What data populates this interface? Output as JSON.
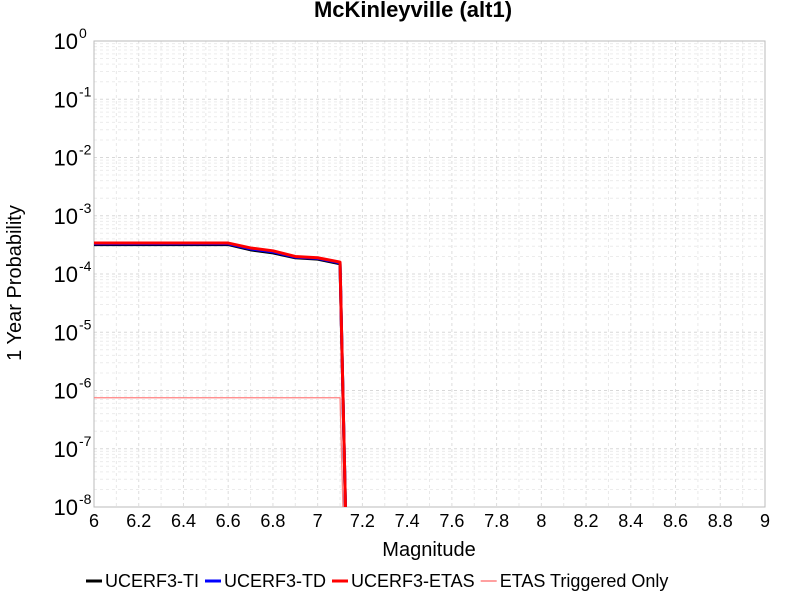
{
  "chart_data": {
    "type": "line",
    "title": "McKinleyville (alt1)",
    "xlabel": "Magnitude",
    "ylabel": "1 Year Probability",
    "xlim": [
      6,
      9
    ],
    "ylim": [
      1e-08,
      1
    ],
    "yscale": "log",
    "grid": true,
    "legend_position": "bottom",
    "x_ticks": [
      6,
      6.2,
      6.4,
      6.6,
      6.8,
      7,
      7.2,
      7.4,
      7.6,
      7.8,
      8,
      8.2,
      8.4,
      8.6,
      8.8,
      9
    ],
    "x_tick_labels": [
      "6",
      "6.2",
      "6.4",
      "6.6",
      "6.8",
      "7",
      "7.2",
      "7.4",
      "7.6",
      "7.8",
      "8",
      "8.2",
      "8.4",
      "8.6",
      "8.8",
      "9"
    ],
    "y_ticks": [
      {
        "value": 1,
        "base": "10",
        "exp": "0"
      },
      {
        "value": 0.1,
        "base": "10",
        "exp": "-1"
      },
      {
        "value": 0.01,
        "base": "10",
        "exp": "-2"
      },
      {
        "value": 0.001,
        "base": "10",
        "exp": "-3"
      },
      {
        "value": 0.0001,
        "base": "10",
        "exp": "-4"
      },
      {
        "value": 1e-05,
        "base": "10",
        "exp": "-5"
      },
      {
        "value": 1e-06,
        "base": "10",
        "exp": "-6"
      },
      {
        "value": 1e-07,
        "base": "10",
        "exp": "-7"
      },
      {
        "value": 1e-08,
        "base": "10",
        "exp": "-8"
      }
    ],
    "series": [
      {
        "name": "UCERF3-TI",
        "color": "#000000",
        "x": [
          6.0,
          6.1,
          6.2,
          6.3,
          6.4,
          6.5,
          6.6,
          6.7,
          6.8,
          6.9,
          7.0,
          7.1,
          7.13
        ],
        "y": [
          0.00032,
          0.00032,
          0.00032,
          0.00032,
          0.00032,
          0.00032,
          0.00032,
          0.00026,
          0.00023,
          0.00019,
          0.00018,
          0.00015,
          1e-09
        ]
      },
      {
        "name": "UCERF3-TD",
        "color": "#0000ff",
        "x": [
          6.0,
          6.1,
          6.2,
          6.3,
          6.4,
          6.5,
          6.6,
          6.7,
          6.8,
          6.9,
          7.0,
          7.1,
          7.13
        ],
        "y": [
          0.00033,
          0.00033,
          0.00033,
          0.00033,
          0.00033,
          0.00033,
          0.00033,
          0.00027,
          0.00024,
          0.000195,
          0.000185,
          0.000155,
          1e-09
        ]
      },
      {
        "name": "UCERF3-ETAS",
        "color": "#ff0000",
        "x": [
          6.0,
          6.1,
          6.2,
          6.3,
          6.4,
          6.5,
          6.6,
          6.7,
          6.8,
          6.9,
          7.0,
          7.1,
          7.13
        ],
        "y": [
          0.00034,
          0.00034,
          0.00034,
          0.00034,
          0.00034,
          0.00034,
          0.00034,
          0.00028,
          0.00025,
          0.0002,
          0.00019,
          0.00016,
          1e-09
        ]
      },
      {
        "name": "ETAS Triggered Only",
        "color": "#ff8080",
        "x": [
          6.0,
          6.1,
          6.2,
          6.3,
          6.4,
          6.5,
          6.6,
          6.7,
          6.8,
          6.9,
          7.0,
          7.1,
          7.12
        ],
        "y": [
          7.5e-07,
          7.5e-07,
          7.5e-07,
          7.5e-07,
          7.5e-07,
          7.5e-07,
          7.5e-07,
          7.5e-07,
          7.5e-07,
          7.5e-07,
          7.5e-07,
          7.5e-07,
          1e-09
        ]
      }
    ]
  }
}
